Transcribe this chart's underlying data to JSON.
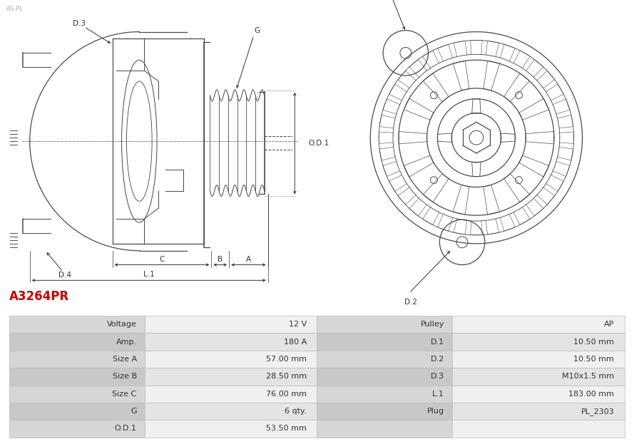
{
  "title": "A3264PR",
  "title_color": "#cc0000",
  "bg_color": "#ffffff",
  "table_rows": [
    [
      "Voltage",
      "12 V",
      "Pulley",
      "AP"
    ],
    [
      "Amp.",
      "180 A",
      "D.1",
      "10.50 mm"
    ],
    [
      "Size A",
      "57.00 mm",
      "D.2",
      "10.50 mm"
    ],
    [
      "Size B",
      "28.50 mm",
      "D.3",
      "M10x1.5 mm"
    ],
    [
      "Size C",
      "76.00 mm",
      "L.1",
      "183.00 mm"
    ],
    [
      "G",
      "6 qty.",
      "Plug",
      "PL_2303"
    ],
    [
      "O.D.1",
      "53.50 mm",
      "",
      ""
    ]
  ],
  "draw_color": "#4a4a4a",
  "dim_color": "#333333",
  "label_cell_bg_even": "#d6d6d6",
  "label_cell_bg_odd": "#c8c8c8",
  "value_cell_bg_even": "#f0f0f0",
  "value_cell_bg_odd": "#e4e4e4",
  "border_color": "#bbbbbb"
}
